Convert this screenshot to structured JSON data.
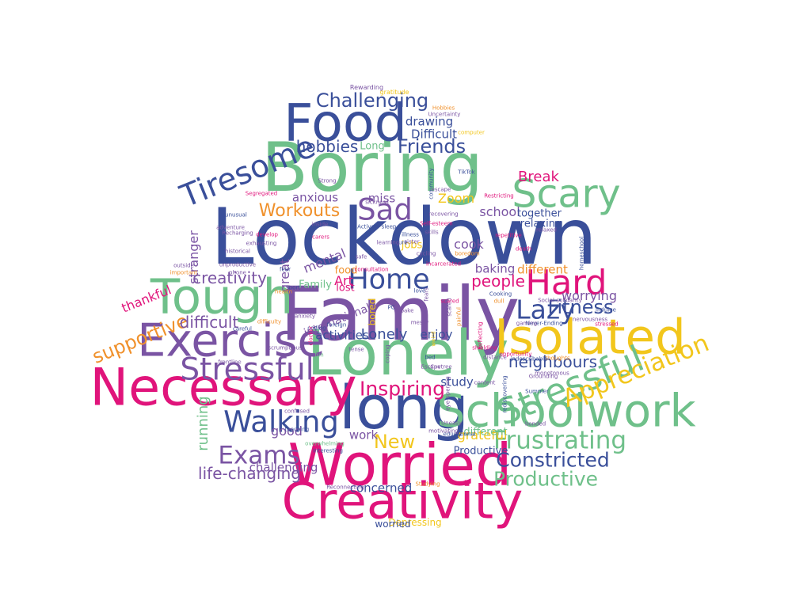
{
  "palette": {
    "blue": "#3a4f9a",
    "green": "#6fc08a",
    "purple": "#7a54a3",
    "pink": "#e0147b",
    "yellow": "#f2c61c",
    "orange": "#f0912c"
  },
  "words": [
    {
      "text": "Lockdown",
      "color": "#3a4f9a",
      "weight": 1.0
    },
    {
      "text": "Family",
      "color": "#7a54a3",
      "weight": 0.96
    },
    {
      "text": "Boring",
      "color": "#6fc08a",
      "weight": 0.88
    },
    {
      "text": "Lonely",
      "color": "#6fc08a",
      "weight": 0.8
    },
    {
      "text": "long",
      "color": "#3a4f9a",
      "weight": 0.78
    },
    {
      "text": "Worried",
      "color": "#e0147b",
      "weight": 0.74
    },
    {
      "text": "Necessary",
      "color": "#e0147b",
      "weight": 0.66
    },
    {
      "text": "Food",
      "color": "#3a4f9a",
      "weight": 0.66
    },
    {
      "text": "Creativity",
      "color": "#e0147b",
      "weight": 0.64
    },
    {
      "text": "Isolated",
      "color": "#f2c61c",
      "weight": 0.62
    },
    {
      "text": "Tough",
      "color": "#6fc08a",
      "weight": 0.62
    },
    {
      "text": "Exercise",
      "color": "#7a54a3",
      "weight": 0.58
    },
    {
      "text": "Schoolwork",
      "color": "#6fc08a",
      "weight": 0.58
    },
    {
      "text": "Scary",
      "color": "#6fc08a",
      "weight": 0.5
    },
    {
      "text": "Stressful",
      "color": "#6fc08a",
      "weight": 0.46
    },
    {
      "text": "Hard",
      "color": "#e0147b",
      "weight": 0.44
    },
    {
      "text": "Stressful",
      "color": "#7a54a3",
      "weight": 0.4
    },
    {
      "text": "Tiresome",
      "color": "#3a4f9a",
      "weight": 0.4
    },
    {
      "text": "Walking",
      "color": "#3a4f9a",
      "weight": 0.38
    },
    {
      "text": "Sad",
      "color": "#7a54a3",
      "weight": 0.38
    },
    {
      "text": "Home",
      "color": "#3a4f9a",
      "weight": 0.36
    },
    {
      "text": "Lazy",
      "color": "#3a4f9a",
      "weight": 0.34
    },
    {
      "text": "Appreciation",
      "color": "#f2c61c",
      "weight": 0.32
    },
    {
      "text": "Frustrating",
      "color": "#6fc08a",
      "weight": 0.32
    },
    {
      "text": "Exams",
      "color": "#7a54a3",
      "weight": 0.32
    },
    {
      "text": "Inspiring",
      "color": "#e0147b",
      "weight": 0.26
    },
    {
      "text": "Constricted",
      "color": "#3a4f9a",
      "weight": 0.26
    },
    {
      "text": "Productive",
      "color": "#6fc08a",
      "weight": 0.26
    },
    {
      "text": "Challenging",
      "color": "#3a4f9a",
      "weight": 0.24
    },
    {
      "text": "Fitness",
      "color": "#3a4f9a",
      "weight": 0.24
    },
    {
      "text": "Friends",
      "color": "#3a4f9a",
      "weight": 0.24
    },
    {
      "text": "New",
      "color": "#f2c61c",
      "weight": 0.24
    },
    {
      "text": "supportive",
      "color": "#f0912c",
      "weight": 0.24
    },
    {
      "text": "Workouts",
      "color": "#f0912c",
      "weight": 0.22
    },
    {
      "text": "life-changing",
      "color": "#7a54a3",
      "weight": 0.2
    },
    {
      "text": "difficult",
      "color": "#7a54a3",
      "weight": 0.2
    },
    {
      "text": "neighbours",
      "color": "#3a4f9a",
      "weight": 0.2
    },
    {
      "text": "hobbies",
      "color": "#3a4f9a",
      "weight": 0.2
    },
    {
      "text": "creativity",
      "color": "#7a54a3",
      "weight": 0.2
    },
    {
      "text": "people",
      "color": "#e0147b",
      "weight": 0.2
    },
    {
      "text": "Lonely",
      "color": "#3a4f9a",
      "weight": 0.18
    },
    {
      "text": "running",
      "color": "#6fc08a",
      "weight": 0.18
    },
    {
      "text": "Break",
      "color": "#e0147b",
      "weight": 0.18
    },
    {
      "text": "school",
      "color": "#7a54a3",
      "weight": 0.16
    },
    {
      "text": "stranger",
      "color": "#7a54a3",
      "weight": 0.16
    },
    {
      "text": "Art",
      "color": "#e0147b",
      "weight": 0.16
    },
    {
      "text": "mental",
      "color": "#7a54a3",
      "weight": 0.16
    },
    {
      "text": "cook",
      "color": "#7a54a3",
      "weight": 0.16
    },
    {
      "text": "good",
      "color": "#7a54a3",
      "weight": 0.16
    },
    {
      "text": "great",
      "color": "#7a54a3",
      "weight": 0.16
    },
    {
      "text": "thankful",
      "color": "#e0147b",
      "weight": 0.16
    },
    {
      "text": "Zoom",
      "color": "#f2c61c",
      "weight": 0.16
    },
    {
      "text": "grateful",
      "color": "#f2c61c",
      "weight": 0.16
    },
    {
      "text": "worrying",
      "color": "#7a54a3",
      "weight": 0.16
    },
    {
      "text": "different",
      "color": "#f0912c",
      "weight": 0.15
    },
    {
      "text": "baking",
      "color": "#7a54a3",
      "weight": 0.15
    },
    {
      "text": "enjoy",
      "color": "#3a4f9a",
      "weight": 0.15
    },
    {
      "text": "drawing",
      "color": "#3a4f9a",
      "weight": 0.15
    },
    {
      "text": "Difficult",
      "color": "#3a4f9a",
      "weight": 0.15
    },
    {
      "text": "concerned",
      "color": "#3a4f9a",
      "weight": 0.15
    },
    {
      "text": "challenging",
      "color": "#7a54a3",
      "weight": 0.15
    },
    {
      "text": "activities",
      "color": "#3a4f9a",
      "weight": 0.15
    },
    {
      "text": "study",
      "color": "#3a4f9a",
      "weight": 0.15
    },
    {
      "text": "work",
      "color": "#7a54a3",
      "weight": 0.15
    },
    {
      "text": "miss",
      "color": "#7a54a3",
      "weight": 0.15
    },
    {
      "text": "anxious",
      "color": "#7a54a3",
      "weight": 0.15
    },
    {
      "text": "together",
      "color": "#3a4f9a",
      "weight": 0.13
    },
    {
      "text": "relaxing",
      "color": "#3a4f9a",
      "weight": 0.13
    },
    {
      "text": "Long",
      "color": "#6fc08a",
      "weight": 0.13
    },
    {
      "text": "Family",
      "color": "#6fc08a",
      "weight": 0.13
    },
    {
      "text": "food",
      "color": "#f0912c",
      "weight": 0.13
    },
    {
      "text": "lost",
      "color": "#e0147b",
      "weight": 0.13
    },
    {
      "text": "jobs",
      "color": "#f2c61c",
      "weight": 0.13
    },
    {
      "text": "different",
      "color": "#6fc08a",
      "weight": 0.13
    },
    {
      "text": "Productive",
      "color": "#3a4f9a",
      "weight": 0.13
    },
    {
      "text": "Depressing",
      "color": "#f2c61c",
      "weight": 0.12
    },
    {
      "text": "worried",
      "color": "#3a4f9a",
      "weight": 0.12
    },
    {
      "text": "international",
      "color": "#7a54a3",
      "weight": 0.14
    },
    {
      "text": "bored",
      "color": "#f2c61c",
      "weight": 0.12
    },
    {
      "text": "Rewarding",
      "color": "#7a54a3",
      "weight": 0.08
    },
    {
      "text": "gratitude",
      "color": "#f2c61c",
      "weight": 0.08
    },
    {
      "text": "Hobbies",
      "color": "#f0912c",
      "weight": 0.07
    },
    {
      "text": "Uncertainty",
      "color": "#7a54a3",
      "weight": 0.07
    },
    {
      "text": "TikTok",
      "color": "#3a4f9a",
      "weight": 0.07
    },
    {
      "text": "Restricting",
      "color": "#e0147b",
      "weight": 0.07
    },
    {
      "text": "relaxed",
      "color": "#7a54a3",
      "weight": 0.07
    },
    {
      "text": "Segregated",
      "color": "#e0147b",
      "weight": 0.07
    },
    {
      "text": "Strong",
      "color": "#7a54a3",
      "weight": 0.07
    },
    {
      "text": "Recharging",
      "color": "#7a54a3",
      "weight": 0.07
    },
    {
      "text": "historical",
      "color": "#7a54a3",
      "weight": 0.07
    },
    {
      "text": "exhausting",
      "color": "#7a54a3",
      "weight": 0.07
    },
    {
      "text": "develop",
      "color": "#e0147b",
      "weight": 0.07
    },
    {
      "text": "unproductive",
      "color": "#7a54a3",
      "weight": 0.07
    },
    {
      "text": "outside",
      "color": "#7a54a3",
      "weight": 0.07
    },
    {
      "text": "important",
      "color": "#f0912c",
      "weight": 0.07
    },
    {
      "text": "phone",
      "color": "#7a54a3",
      "weight": 0.07
    },
    {
      "text": "Social-solidarity",
      "color": "#7a54a3",
      "weight": 0.07
    },
    {
      "text": "indulge",
      "color": "#3a4f9a",
      "weight": 0.07
    },
    {
      "text": "nervousness",
      "color": "#7a54a3",
      "weight": 0.07
    },
    {
      "text": "stressed",
      "color": "#e0147b",
      "weight": 0.07
    },
    {
      "text": "Never-Ending",
      "color": "#3a4f9a",
      "weight": 0.07
    },
    {
      "text": "thoughts",
      "color": "#f0912c",
      "weight": 0.07
    },
    {
      "text": "Summer",
      "color": "#3a4f9a",
      "weight": 0.07
    },
    {
      "text": "Grounding",
      "color": "#7a54a3",
      "weight": 0.07
    },
    {
      "text": "monotonous",
      "color": "#7a54a3",
      "weight": 0.07
    },
    {
      "text": "indescribable",
      "color": "#3a4f9a",
      "weight": 0.07
    },
    {
      "text": "educational",
      "color": "#3a4f9a",
      "weight": 0.07
    },
    {
      "text": "Uneasy",
      "color": "#7a54a3",
      "weight": 0.07
    },
    {
      "text": "motivating",
      "color": "#7a54a3",
      "weight": 0.07
    },
    {
      "text": "Studying",
      "color": "#f0912c",
      "weight": 0.07
    },
    {
      "text": "Reconnecting",
      "color": "#7a54a3",
      "weight": 0.07
    },
    {
      "text": "Interesting",
      "color": "#3a4f9a",
      "weight": 0.07
    },
    {
      "text": "overwhelming",
      "color": "#6fc08a",
      "weight": 0.07
    },
    {
      "text": "teaching",
      "color": "#3a4f9a",
      "weight": 0.07
    },
    {
      "text": "confused",
      "color": "#7a54a3",
      "weight": 0.07
    },
    {
      "text": "frontline",
      "color": "#7a54a3",
      "weight": 0.07
    },
    {
      "text": "scrumptious",
      "color": "#7a54a3",
      "weight": 0.07
    },
    {
      "text": "difficulty",
      "color": "#f0912c",
      "weight": 0.07
    },
    {
      "text": "careful",
      "color": "#3a4f9a",
      "weight": 0.07
    },
    {
      "text": "messy",
      "color": "#7a54a3",
      "weight": 0.07
    },
    {
      "text": "coding",
      "color": "#3a4f9a",
      "weight": 0.07
    },
    {
      "text": "foreign",
      "color": "#3a4f9a",
      "weight": 0.07
    },
    {
      "text": "tense",
      "color": "#7a54a3",
      "weight": 0.07
    },
    {
      "text": "fun",
      "color": "#6fc08a",
      "weight": 0.07
    },
    {
      "text": "anxiety",
      "color": "#7a54a3",
      "weight": 0.07
    },
    {
      "text": "health",
      "color": "#f0912c",
      "weight": 0.07
    },
    {
      "text": "sport",
      "color": "#3a4f9a",
      "weight": 0.07
    },
    {
      "text": "safe",
      "color": "#7a54a3",
      "weight": 0.07
    },
    {
      "text": "fear",
      "color": "#3a4f9a",
      "weight": 0.07
    },
    {
      "text": "sleep",
      "color": "#3a4f9a",
      "weight": 0.07
    },
    {
      "text": "future",
      "color": "#3a4f9a",
      "weight": 0.07
    },
    {
      "text": "carers",
      "color": "#e0147b",
      "weight": 0.07
    },
    {
      "text": "illness",
      "color": "#3a4f9a",
      "weight": 0.07
    },
    {
      "text": "cycling",
      "color": "#7a54a3",
      "weight": 0.07
    },
    {
      "text": "skills",
      "color": "#7a54a3",
      "weight": 0.07
    },
    {
      "text": "Self-esteem",
      "color": "#e0147b",
      "weight": 0.07
    },
    {
      "text": "recovering",
      "color": "#7a54a3",
      "weight": 0.07
    },
    {
      "text": "sister",
      "color": "#7a54a3",
      "weight": 0.07
    },
    {
      "text": "learning",
      "color": "#7a54a3",
      "weight": 0.07
    },
    {
      "text": "escape",
      "color": "#7a54a3",
      "weight": 0.07
    },
    {
      "text": "sickness",
      "color": "#7a54a3",
      "weight": 0.07
    },
    {
      "text": "community",
      "color": "#3a4f9a",
      "weight": 0.07
    },
    {
      "text": "computer",
      "color": "#f2c61c",
      "weight": 0.07
    },
    {
      "text": "unusual",
      "color": "#3a4f9a",
      "weight": 0.07
    },
    {
      "text": "adventure",
      "color": "#7a54a3",
      "weight": 0.07
    },
    {
      "text": "inside",
      "color": "#7a54a3",
      "weight": 0.07
    },
    {
      "text": "Active",
      "color": "#3a4f9a",
      "weight": 0.07
    },
    {
      "text": "incarcerated",
      "color": "#e0147b",
      "weight": 0.07
    },
    {
      "text": "consultation",
      "color": "#e0147b",
      "weight": 0.07
    },
    {
      "text": "repetitive",
      "color": "#e0147b",
      "weight": 0.07
    },
    {
      "text": "death",
      "color": "#e0147b",
      "weight": 0.07
    },
    {
      "text": "boredom",
      "color": "#f0912c",
      "weight": 0.07
    },
    {
      "text": "homeschool",
      "color": "#3a4f9a",
      "weight": 0.07
    },
    {
      "text": "Cooking",
      "color": "#3a4f9a",
      "weight": 0.07
    },
    {
      "text": "dull",
      "color": "#f0912c",
      "weight": 0.07
    },
    {
      "text": "gaming",
      "color": "#7a54a3",
      "weight": 0.07
    },
    {
      "text": "love",
      "color": "#3a4f9a",
      "weight": 0.07
    },
    {
      "text": "scared",
      "color": "#7a54a3",
      "weight": 0.07
    },
    {
      "text": "fears",
      "color": "#7a54a3",
      "weight": 0.07
    },
    {
      "text": "painful",
      "color": "#f0912c",
      "weight": 0.07
    },
    {
      "text": "weird",
      "color": "#f2c61c",
      "weight": 0.07
    },
    {
      "text": "coping",
      "color": "#7a54a3",
      "weight": 0.07
    },
    {
      "text": "Reflecting",
      "color": "#e0147b",
      "weight": 0.07
    },
    {
      "text": "distance",
      "color": "#7a54a3",
      "weight": 0.07
    },
    {
      "text": "shielding",
      "color": "#e0147b",
      "weight": 0.07
    },
    {
      "text": "content",
      "color": "#7a54a3",
      "weight": 0.07
    },
    {
      "text": "opportunity",
      "color": "#e0147b",
      "weight": 0.07
    },
    {
      "text": "bonded",
      "color": "#7a54a3",
      "weight": 0.07
    },
    {
      "text": "rediscovering",
      "color": "#3a4f9a",
      "weight": 0.07
    },
    {
      "text": "eye-opening",
      "color": "#7a54a3",
      "weight": 0.07
    },
    {
      "text": "Escape",
      "color": "#7a54a3",
      "weight": 0.07
    },
    {
      "text": "Covtree",
      "color": "#7a54a3",
      "weight": 0.07
    },
    {
      "text": "bed",
      "color": "#3a4f9a",
      "weight": 0.07
    },
    {
      "text": "bake",
      "color": "#7a54a3",
      "weight": 0.07
    },
    {
      "text": "PC",
      "color": "#3a4f9a",
      "weight": 0.07
    },
    {
      "text": "clocker",
      "color": "#e0147b",
      "weight": 0.07
    },
    {
      "text": "scared",
      "color": "#e0147b",
      "weight": 0.07
    }
  ]
}
